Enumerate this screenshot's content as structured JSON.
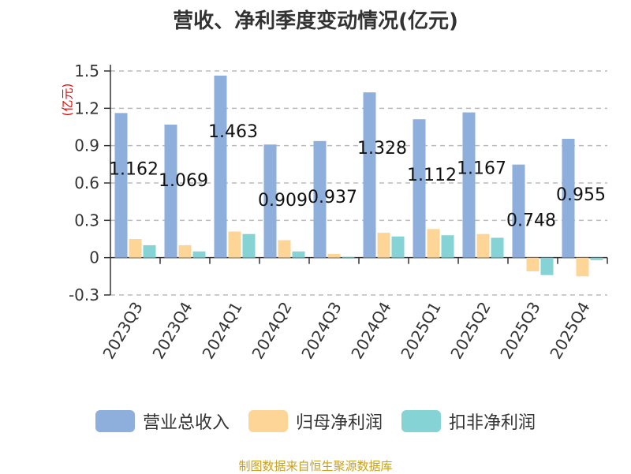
{
  "chart_data": {
    "type": "bar",
    "title": "营收、净利季度变动情况(亿元)",
    "unit_label": "(亿元)",
    "categories": [
      "2023Q3",
      "2023Q4",
      "2024Q1",
      "2024Q2",
      "2024Q3",
      "2024Q4",
      "2025Q1",
      "2025Q2",
      "2025Q3",
      "2025Q4"
    ],
    "yticks": [
      "1.5",
      "1.2",
      "0.9",
      "0.6",
      "0.3",
      "0",
      "-0.3"
    ],
    "ylim": [
      -0.3,
      1.5
    ],
    "grid": true,
    "legend_position": "bottom",
    "series": [
      {
        "name": "营业总收入",
        "color": "#8eaedc",
        "values": [
          1.162,
          1.069,
          1.463,
          0.909,
          0.937,
          1.328,
          1.112,
          1.167,
          0.748,
          0.955
        ],
        "labels": [
          "1.162",
          "1.069",
          "1.463",
          "0.909",
          "0.937",
          "1.328",
          "1.112",
          "1.167",
          "0.748",
          "0.955"
        ]
      },
      {
        "name": "归母净利润",
        "color": "#fdd596",
        "values": [
          0.15,
          0.1,
          0.21,
          0.14,
          0.03,
          0.2,
          0.23,
          0.19,
          -0.11,
          -0.15
        ]
      },
      {
        "name": "扣非净利润",
        "color": "#86d3d6",
        "values": [
          0.1,
          0.05,
          0.19,
          0.05,
          0.005,
          0.17,
          0.18,
          0.16,
          -0.14,
          -0.02
        ]
      }
    ],
    "source": "制图数据来自恒生聚源数据库"
  }
}
